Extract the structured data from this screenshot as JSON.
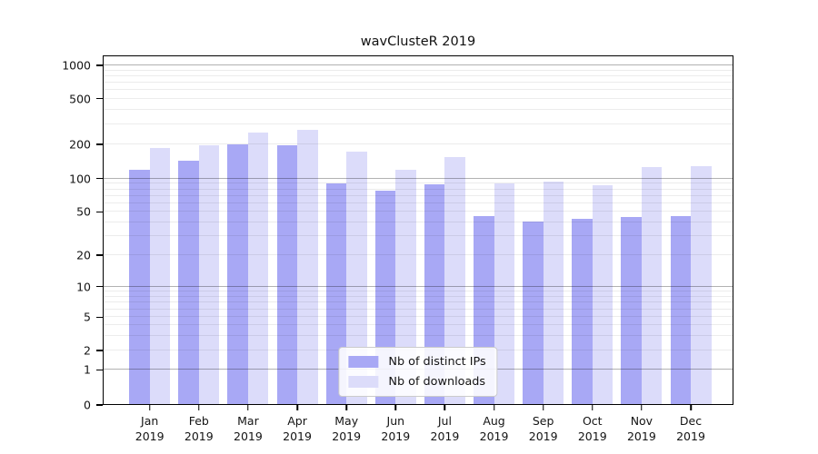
{
  "figure_title": "wavClusteR 2019",
  "chart_data": {
    "type": "bar",
    "title": "wavClusteR 2019",
    "categories": [
      "Jan",
      "Feb",
      "Mar",
      "Apr",
      "May",
      "Jun",
      "Jul",
      "Aug",
      "Sep",
      "Oct",
      "Nov",
      "Dec"
    ],
    "category_sublabel": "2019",
    "series": [
      {
        "name": "Nb of distinct IPs",
        "color": "#a8a8f5",
        "values": [
          120,
          144,
          200,
          197,
          90,
          78,
          89,
          46,
          41,
          43,
          45,
          46
        ]
      },
      {
        "name": "Nb of downloads",
        "color": "#dcdcfa",
        "values": [
          187,
          197,
          255,
          268,
          174,
          120,
          155,
          91,
          94,
          87,
          126,
          128
        ]
      }
    ],
    "y_axis": {
      "scale": "symlog",
      "tick_labels": [
        "0",
        "1",
        "2",
        "5",
        "10",
        "20",
        "50",
        "100",
        "200",
        "500",
        "1000"
      ],
      "ticks": [
        0,
        1,
        2,
        5,
        10,
        20,
        50,
        100,
        200,
        500,
        1000
      ],
      "range_top": 1200
    },
    "x_axis": {
      "tick_labels": [
        "Jan 2019",
        "Feb 2019",
        "Mar 2019",
        "Apr 2019",
        "May 2019",
        "Jun 2019",
        "Jul 2019",
        "Aug 2019",
        "Sep 2019",
        "Oct 2019",
        "Nov 2019",
        "Dec 2019"
      ]
    },
    "grid": true,
    "legend": {
      "position": "lower center",
      "entries": [
        "Nb of distinct IPs",
        "Nb of downloads"
      ]
    }
  },
  "colors": {
    "bar_dark": "#a8a8f5",
    "bar_light": "#dcdcfa",
    "major_grid": "rgba(0,0,0,0.30)",
    "minor_grid": "rgba(0,0,0,0.075)",
    "axis": "#000000",
    "text": "#141414"
  },
  "layout_hints": {
    "value_anchors": [
      [
        0,
        0.0
      ],
      [
        1,
        0.1005
      ],
      [
        2,
        0.1558
      ],
      [
        5,
        0.2511
      ],
      [
        10,
        0.3384
      ],
      [
        20,
        0.4286
      ],
      [
        50,
        0.5525
      ],
      [
        100,
        0.6475
      ],
      [
        200,
        0.7455
      ],
      [
        500,
        0.8761
      ],
      [
        1000,
        0.9714
      ]
    ],
    "major_gridlines": [
      1,
      10,
      100,
      1000
    ],
    "minor_gridlines": [
      2,
      3,
      4,
      5,
      6,
      7,
      8,
      9,
      20,
      30,
      40,
      50,
      60,
      70,
      80,
      90,
      200,
      300,
      400,
      500,
      600,
      700,
      800,
      900
    ],
    "x_first_center": 51.7,
    "x_pitch": 54.12,
    "bar_width": 22.5
  }
}
